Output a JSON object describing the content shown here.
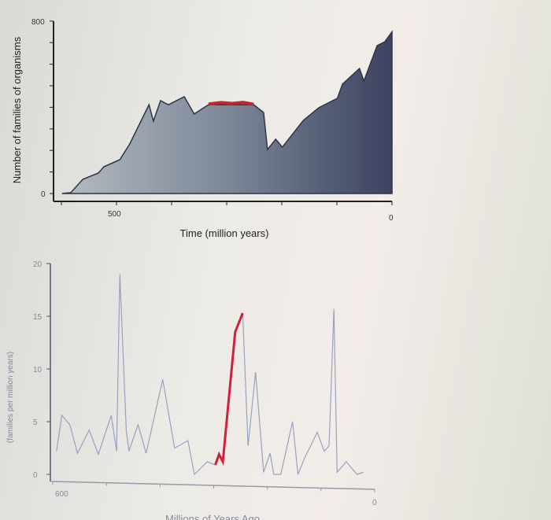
{
  "chart_data": [
    {
      "type": "area",
      "xlabel": "Time (million years)",
      "ylabel": "Number of families of organisms",
      "xlim": [
        600,
        0
      ],
      "ylim": [
        0,
        800
      ],
      "x_tick_labels": [
        "500",
        "0"
      ],
      "y_tick_labels": [
        "800",
        "0"
      ],
      "grid": false,
      "series": [
        {
          "x": [
            599,
            583,
            561,
            533,
            523,
            494,
            476,
            441,
            433,
            420,
            406,
            377,
            359,
            333,
            251,
            233,
            226,
            211,
            199,
            161,
            133,
            99,
            90,
            59,
            51,
            27,
            13,
            0
          ],
          "y": [
            0,
            4,
            66,
            95,
            124,
            157,
            230,
            412,
            336,
            431,
            412,
            449,
            369,
            412,
            412,
            376,
            204,
            252,
            215,
            339,
            398,
            442,
            507,
            580,
            522,
            686,
            704,
            750
          ],
          "color": "#4a5068"
        }
      ],
      "highlight": {
        "x": [
          333,
          310,
          290,
          270,
          251
        ],
        "y": [
          415,
          422,
          418,
          423,
          414
        ],
        "color": "#c0282c"
      }
    },
    {
      "type": "line",
      "xlabel": "Millions of Years Ago",
      "ylabel": "(families per million years)",
      "xlim": [
        600,
        0
      ],
      "ylim": [
        0,
        20
      ],
      "x_tick_labels": [
        "600",
        "0"
      ],
      "y_tick_labels": [
        "0",
        "5",
        "10",
        "15",
        "20"
      ],
      "grid": false,
      "series": [
        {
          "x": [
            593,
            583,
            568,
            554,
            532,
            515,
            491,
            481,
            475,
            463,
            458,
            441,
            426,
            395,
            373,
            348,
            336,
            312,
            297,
            290,
            283,
            260,
            246,
            236,
            222,
            207,
            195,
            188,
            175,
            153,
            143,
            131,
            107,
            94,
            85,
            76,
            70,
            53,
            33,
            21
          ],
          "y": [
            2.2,
            5.6,
            4.7,
            2.0,
            4.2,
            1.9,
            5.6,
            2.2,
            19,
            4.2,
            2.2,
            4.7,
            2.0,
            9.0,
            2.5,
            3.2,
            0,
            1.2,
            0.9,
            1.9,
            1.2,
            13.5,
            15.3,
            2.7,
            9.7,
            0.2,
            2.0,
            0,
            0,
            5,
            0,
            1.5,
            4,
            2.2,
            2.7,
            15.7,
            0.2,
            1.2,
            0,
            0.2
          ],
          "color": "#9aa0c0"
        }
      ],
      "highlight": {
        "x": [
          297,
          290,
          283,
          260,
          246
        ],
        "y": [
          0.9,
          1.9,
          1.2,
          13.5,
          15.3
        ],
        "color": "#d0203a"
      }
    }
  ]
}
